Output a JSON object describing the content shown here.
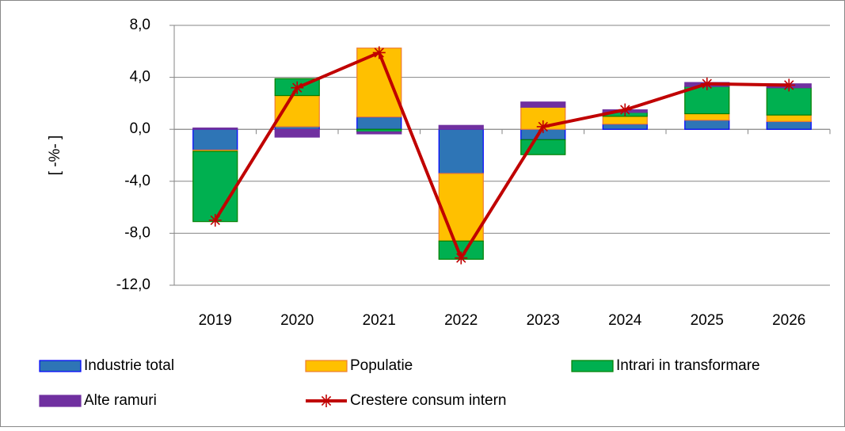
{
  "chart_data": {
    "type": "bar",
    "y_label": "[ -%- ]",
    "categories": [
      "2019",
      "2020",
      "2021",
      "2022",
      "2023",
      "2024",
      "2025",
      "2026"
    ],
    "series": [
      {
        "name": "Industrie total",
        "color": "#2e75b6",
        "border": "#0000ff",
        "values": [
          -1.6,
          0.2,
          0.95,
          -3.4,
          -0.8,
          0.4,
          0.7,
          0.6
        ]
      },
      {
        "name": "Populatie",
        "color": "#ffc000",
        "border": "#ed7d31",
        "values": [
          -0.1,
          2.4,
          5.3,
          -5.2,
          1.7,
          0.6,
          0.5,
          0.5
        ]
      },
      {
        "name": "Intrari in transformare",
        "color": "#00b050",
        "border": "#008000",
        "values": [
          -5.4,
          1.3,
          -0.2,
          -1.4,
          -1.15,
          0.3,
          2.1,
          2.1
        ]
      },
      {
        "name": "Alte ramuri",
        "color": "#7030a0",
        "border": "#7030a0",
        "values": [
          0.1,
          -0.6,
          -0.15,
          0.3,
          0.4,
          0.2,
          0.3,
          0.3
        ]
      },
      {
        "name": "Crestere consum intern",
        "type": "line",
        "color": "#c00000",
        "values": [
          -7.0,
          3.2,
          5.9,
          -9.9,
          0.2,
          1.5,
          3.5,
          3.4
        ]
      }
    ],
    "ylim": [
      -12,
      8
    ],
    "yticks": [
      {
        "value": -12,
        "label": "-12,0"
      },
      {
        "value": -8,
        "label": "-8,0"
      },
      {
        "value": -4,
        "label": "-4,0"
      },
      {
        "value": 0,
        "label": "0,0"
      },
      {
        "value": 4,
        "label": "4,0"
      },
      {
        "value": 8,
        "label": "8,0"
      }
    ],
    "grid": true
  }
}
